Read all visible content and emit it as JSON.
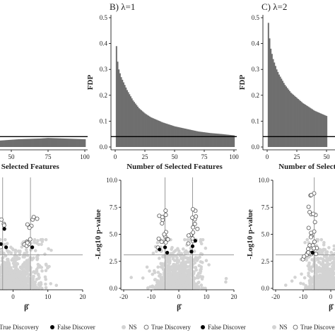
{
  "chart_data": [
    {
      "type": "bar",
      "title": "",
      "xlabel": "Number of Selected Features",
      "ylabel": "",
      "xlim": [
        0,
        100
      ],
      "xticks": [
        50,
        75,
        100
      ],
      "ylim": [
        0,
        0.5
      ],
      "hline": 0.04,
      "bars_x": [
        25,
        40,
        55,
        70,
        75,
        80,
        90,
        100
      ],
      "bars_y": [
        0.02,
        0.024,
        0.03,
        0.033,
        0.035,
        0.034,
        0.032,
        0.03
      ]
    },
    {
      "type": "bar",
      "title": "B) λ=1",
      "xlabel": "Number of Selected Features",
      "ylabel": "FDP",
      "xlim": [
        0,
        100
      ],
      "xticks": [
        0,
        25,
        50,
        75,
        100
      ],
      "ylim": [
        0,
        0.5
      ],
      "yticks": [
        0.0,
        0.1,
        0.2,
        0.3,
        0.4,
        0.5
      ],
      "hline": 0.04,
      "x": [
        1,
        2,
        3,
        5,
        8,
        10,
        15,
        20,
        25,
        30,
        40,
        50,
        60,
        70,
        80,
        90,
        100
      ],
      "values": [
        0.39,
        0.33,
        0.3,
        0.27,
        0.24,
        0.22,
        0.18,
        0.15,
        0.13,
        0.115,
        0.095,
        0.08,
        0.07,
        0.06,
        0.054,
        0.05,
        0.045
      ]
    },
    {
      "type": "bar",
      "title": "C) λ=2",
      "xlabel": "Number of Selected Features",
      "ylabel": "FDP",
      "xlim": [
        0,
        100
      ],
      "xticks": [
        0,
        25,
        50
      ],
      "ylim": [
        0,
        0.5
      ],
      "yticks": [
        0.0,
        0.1,
        0.2,
        0.3,
        0.4,
        0.5
      ],
      "hline": 0.04,
      "x": [
        1,
        2,
        3,
        5,
        8,
        10,
        15,
        20,
        25,
        30,
        40,
        50
      ],
      "values": [
        0.48,
        0.42,
        0.38,
        0.34,
        0.3,
        0.28,
        0.24,
        0.21,
        0.19,
        0.17,
        0.14,
        0.12
      ]
    },
    {
      "type": "scatter",
      "title": "",
      "xlabel": "β̂",
      "ylabel": "",
      "xlim": [
        -20,
        20
      ],
      "xticks": [
        0,
        10,
        20
      ],
      "ylim": [
        0,
        10
      ],
      "vlines": [
        -3,
        5
      ],
      "hline": 3.1,
      "legend": [
        "True Discovery",
        "False Discover"
      ],
      "legend_position": "bottom"
    },
    {
      "type": "scatter",
      "title": "",
      "xlabel": "β̂",
      "ylabel": "-Log10 p-value",
      "xlim": [
        -20,
        20
      ],
      "xticks": [
        -20,
        -10,
        0,
        10,
        20
      ],
      "ylim": [
        0,
        10
      ],
      "yticks": [
        0.0,
        2.5,
        5.0,
        7.5,
        10.0
      ],
      "vlines": [
        -5,
        5
      ],
      "hline": 3.1,
      "legend": [
        "NS",
        "True Discovery",
        "False Discover"
      ],
      "legend_position": "bottom"
    },
    {
      "type": "scatter",
      "title": "",
      "xlabel": "β̂",
      "ylabel": "-Log10 p-value",
      "xlim": [
        -20,
        20
      ],
      "xticks": [
        -20,
        -10,
        0
      ],
      "ylim": [
        0,
        10
      ],
      "yticks": [
        0.0,
        2.5,
        5.0,
        7.5,
        10.0
      ],
      "vlines": [
        -6
      ],
      "hline": 3.1,
      "legend": [
        "NS",
        "True Discovery"
      ],
      "legend_position": "bottom"
    }
  ]
}
